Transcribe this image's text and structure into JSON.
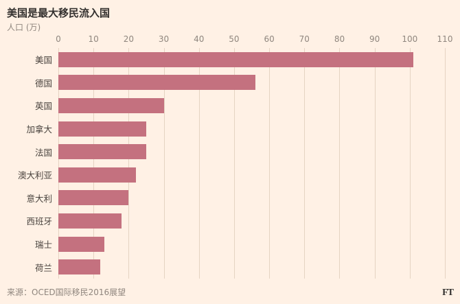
{
  "title": "美国是最大移民流入国",
  "axis_label": "人口 (万)",
  "source": "来源：OCED国际移民2016展望",
  "logo": "FT",
  "colors": {
    "background": "#fff1e5",
    "bar": "#c4717f",
    "grid": "#e5d3c2",
    "title": "#33302e",
    "label": "#4a443f",
    "muted": "#8f867e"
  },
  "chart_data": {
    "type": "bar",
    "orientation": "horizontal",
    "title": "美国是最大移民流入国",
    "xlabel": "人口 (万)",
    "categories": [
      "美国",
      "德国",
      "英国",
      "加拿大",
      "法国",
      "澳大利亚",
      "意大利",
      "西班牙",
      "瑞士",
      "荷兰"
    ],
    "values": [
      101,
      56,
      30,
      25,
      25,
      22,
      20,
      18,
      13,
      12
    ],
    "xlim": [
      0,
      110
    ],
    "ticks": [
      0,
      10,
      20,
      30,
      40,
      50,
      60,
      70,
      80,
      90,
      100,
      110
    ],
    "grid": true,
    "legend": "none",
    "source": "来源：OCED国际移民2016展望"
  }
}
